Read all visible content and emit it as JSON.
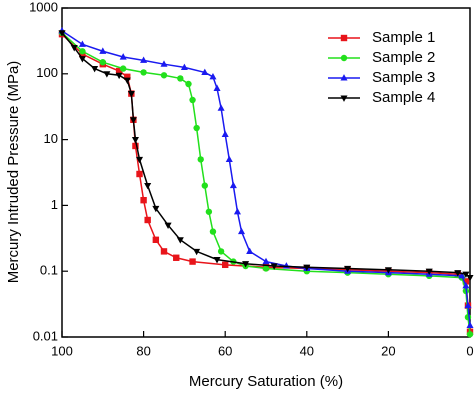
{
  "chart_data": {
    "type": "line",
    "x_label": "Mercury Saturation (%)",
    "y_label": "Mercury Intruded Pressure (MPa)",
    "xlim": [
      100,
      0
    ],
    "xticks": [
      100,
      80,
      60,
      40,
      20,
      0
    ],
    "ylim": [
      0.01,
      1000
    ],
    "yticks": [
      0.01,
      0.1,
      1,
      10,
      100,
      1000
    ],
    "y_scale": "log",
    "legend": "top-right",
    "series": [
      {
        "name": "Sample 1",
        "color": "#e8141a",
        "marker": "square",
        "x": [
          100,
          95,
          90,
          86,
          84,
          83,
          82.5,
          82,
          81,
          80,
          79,
          77,
          75,
          72,
          68,
          60,
          50,
          40,
          30,
          20,
          10,
          3,
          1,
          0.5,
          0
        ],
        "values": [
          400,
          200,
          140,
          110,
          90,
          50,
          20,
          8,
          3,
          1.2,
          0.6,
          0.3,
          0.2,
          0.16,
          0.14,
          0.125,
          0.115,
          0.11,
          0.105,
          0.1,
          0.095,
          0.09,
          0.07,
          0.03,
          0.012
        ]
      },
      {
        "name": "Sample 2",
        "color": "#22e01c",
        "marker": "circle",
        "x": [
          100,
          95,
          90,
          85,
          80,
          75,
          71,
          69,
          68,
          67,
          66,
          65,
          64,
          63,
          61,
          58,
          55,
          50,
          40,
          30,
          20,
          10,
          2,
          1,
          0.5,
          0
        ],
        "values": [
          420,
          220,
          150,
          120,
          105,
          95,
          85,
          70,
          40,
          15,
          5,
          2,
          0.8,
          0.4,
          0.2,
          0.14,
          0.12,
          0.11,
          0.1,
          0.095,
          0.09,
          0.085,
          0.08,
          0.05,
          0.02,
          0.011
        ]
      },
      {
        "name": "Sample 3",
        "color": "#1a1af0",
        "marker": "triangle",
        "x": [
          100,
          95,
          90,
          85,
          80,
          75,
          70,
          65,
          63,
          62,
          61,
          60,
          59,
          58,
          57,
          56,
          54,
          50,
          45,
          40,
          30,
          20,
          10,
          2,
          1,
          0.5,
          0
        ],
        "values": [
          450,
          280,
          220,
          180,
          160,
          140,
          125,
          105,
          90,
          60,
          30,
          12,
          5,
          2,
          0.8,
          0.4,
          0.2,
          0.14,
          0.12,
          0.11,
          0.1,
          0.095,
          0.09,
          0.085,
          0.06,
          0.03,
          0.015
        ]
      },
      {
        "name": "Sample 4",
        "color": "#000000",
        "marker": "triangle-down",
        "x": [
          100,
          97,
          95,
          92,
          89,
          86,
          84,
          83,
          82.5,
          82,
          81,
          79,
          77,
          74,
          71,
          67,
          62,
          55,
          48,
          40,
          30,
          20,
          10,
          3,
          1,
          0
        ],
        "values": [
          420,
          250,
          170,
          120,
          100,
          95,
          80,
          50,
          20,
          10,
          5,
          2,
          0.9,
          0.5,
          0.3,
          0.2,
          0.15,
          0.13,
          0.12,
          0.115,
          0.11,
          0.105,
          0.1,
          0.095,
          0.09,
          0.08
        ]
      }
    ]
  }
}
